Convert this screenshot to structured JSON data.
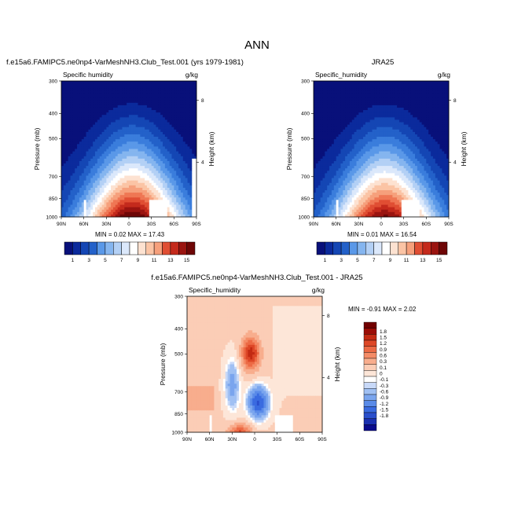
{
  "page_title": "ANN",
  "colors": {
    "levels": [
      "#08107a",
      "#0b2a9c",
      "#1446b4",
      "#2361c9",
      "#3a7ddc",
      "#5a98e8",
      "#85b5ef",
      "#b3d0f5",
      "#dbe8fb",
      "#ffffff",
      "#fde2d1",
      "#fbc4a5",
      "#f6a07c",
      "#ef7754",
      "#e04e33",
      "#c42a1c",
      "#9a1410",
      "#6e0606"
    ],
    "diff_levels": [
      "#0a0b8c",
      "#1a30b0",
      "#2a4fcc",
      "#3a6be0",
      "#5a8be8",
      "#7aa5ee",
      "#a0c0f3",
      "#c8d9f8",
      "#ffffff",
      "#fde6d8",
      "#fbcdb6",
      "#f8ad8d",
      "#f48c67",
      "#ec6a45",
      "#dd4727",
      "#c32a12",
      "#9b0d06",
      "#720000"
    ]
  },
  "chart_data": [
    {
      "type": "heatmap",
      "title": "f.e15a6.FAMIPC5.ne0np4-VarMeshNH3.Club_Test.001 (yrs 1979-1981)",
      "left_label": "Specific humidity",
      "right_label": "g/kg",
      "xlabel": "",
      "ylabel": "Pressure (mb)",
      "y2label": "Height (km)",
      "xticks": [
        "90N",
        "60N",
        "30N",
        "0",
        "30S",
        "60S",
        "90S"
      ],
      "yticks": [
        "300",
        "400",
        "500",
        "700",
        "850",
        "1000"
      ],
      "y2ticks": [
        "8",
        "4"
      ],
      "stats": "MIN =  0.02  MAX = 17.43",
      "colorbar_labels": [
        "1",
        "3",
        "5",
        "7",
        "9",
        "11",
        "13",
        "15"
      ],
      "ylim": [
        300,
        1000
      ],
      "xlim": [
        90,
        -90
      ]
    },
    {
      "type": "heatmap",
      "title": "JRA25",
      "left_label": "Specific_humidity",
      "right_label": "g/kg",
      "xlabel": "",
      "ylabel": "Pressure (mb)",
      "y2label": "Height (km)",
      "xticks": [
        "90N",
        "60N",
        "30N",
        "0",
        "30S",
        "60S",
        "90S"
      ],
      "yticks": [
        "300",
        "400",
        "500",
        "700",
        "850",
        "1000"
      ],
      "y2ticks": [
        "8",
        "4"
      ],
      "stats": "MIN =  0.01  MAX = 16.54",
      "colorbar_labels": [
        "1",
        "3",
        "5",
        "7",
        "9",
        "11",
        "13",
        "15"
      ],
      "ylim": [
        300,
        1000
      ],
      "xlim": [
        90,
        -90
      ]
    },
    {
      "type": "heatmap",
      "title": "f.e15a6.FAMIPC5.ne0np4-VarMeshNH3.Club_Test.001 - JRA25",
      "left_label": "Specific_humidity",
      "right_label": "g/kg",
      "xlabel": "",
      "ylabel": "Pressure (mb)",
      "y2label": "Height (km)",
      "xticks": [
        "90N",
        "60N",
        "30N",
        "0",
        "30S",
        "60S",
        "90S"
      ],
      "yticks": [
        "300",
        "400",
        "500",
        "700",
        "850",
        "1000"
      ],
      "y2ticks": [
        "8",
        "4"
      ],
      "stats": "MIN = -0.91  MAX =  2.02",
      "colorbar_labels": [
        "1.8",
        "1.5",
        "1.2",
        "0.9",
        "0.6",
        "0.3",
        "0.1",
        "0",
        "-0.1",
        "-0.3",
        "-0.6",
        "-0.9",
        "-1.2",
        "-1.5",
        "-1.8"
      ],
      "ylim": [
        300,
        1000
      ],
      "xlim": [
        90,
        -90
      ]
    }
  ]
}
